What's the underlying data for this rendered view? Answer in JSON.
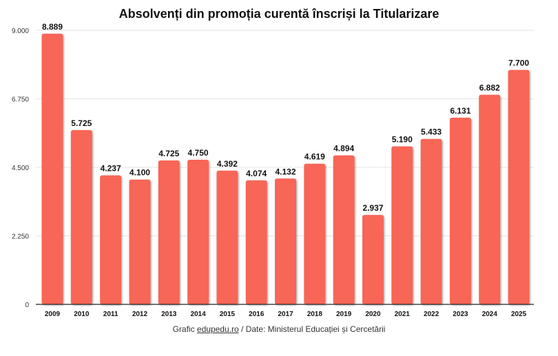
{
  "chart_data": {
    "type": "bar",
    "title": "Absolvenți din promoția curentă înscriși la Titularizare",
    "categories": [
      "2009",
      "2010",
      "2011",
      "2012",
      "2013",
      "2014",
      "2015",
      "2016",
      "2017",
      "2018",
      "2019",
      "2020",
      "2021",
      "2022",
      "2023",
      "2024",
      "2025"
    ],
    "values": [
      8889,
      5725,
      4237,
      4100,
      4725,
      4750,
      4392,
      4074,
      4132,
      4619,
      4894,
      2937,
      5190,
      5433,
      6131,
      6882,
      7700
    ],
    "value_labels": [
      "8.889",
      "5.725",
      "4.237",
      "4.100",
      "4.725",
      "4.750",
      "4.392",
      "4.074",
      "4.132",
      "4.619",
      "4.894",
      "2.937",
      "5.190",
      "5.433",
      "6.131",
      "6.882",
      "7.700"
    ],
    "ylim": [
      0,
      9000
    ],
    "yticks": [
      0,
      2250,
      4500,
      6750,
      9000
    ],
    "ytick_labels": [
      "0",
      "2.250",
      "4.500",
      "6.750",
      "9.000"
    ],
    "grid": true,
    "bar_color": "#F76657",
    "xlabel": "",
    "ylabel": ""
  },
  "caption": {
    "prefix": "Grafic ",
    "link": "edupedu.ro",
    "suffix": " / Date: Ministerul Educației și Cercetării"
  }
}
